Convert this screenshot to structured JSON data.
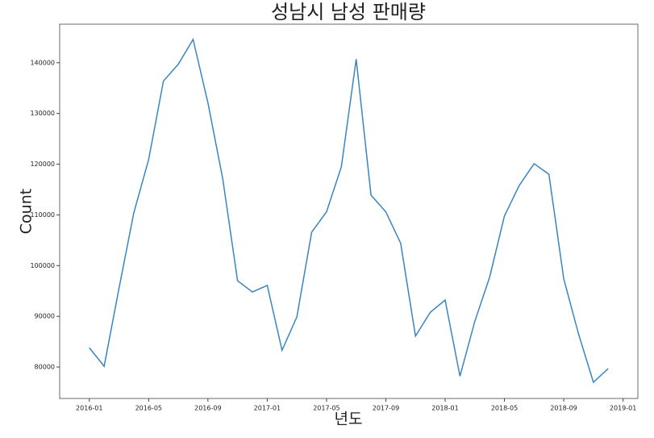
{
  "chart_data": {
    "type": "line",
    "title": "성남시 남성 판매량",
    "x_label": "년도",
    "y_label": "Count",
    "x": [
      "2016-01",
      "2016-02",
      "2016-03",
      "2016-04",
      "2016-05",
      "2016-06",
      "2016-07",
      "2016-08",
      "2016-09",
      "2016-10",
      "2016-11",
      "2016-12",
      "2017-01",
      "2017-02",
      "2017-03",
      "2017-04",
      "2017-05",
      "2017-06",
      "2017-07",
      "2017-08",
      "2017-09",
      "2017-10",
      "2017-11",
      "2017-12",
      "2018-01",
      "2018-02",
      "2018-03",
      "2018-04",
      "2018-05",
      "2018-06",
      "2018-07",
      "2018-08",
      "2018-09",
      "2018-10",
      "2018-11",
      "2018-12"
    ],
    "series": [
      {
        "color": "#3a85c0",
        "values": [
          83800,
          80150,
          95500,
          110400,
          120900,
          136400,
          139700,
          144600,
          132100,
          117100,
          97000,
          94800,
          96100,
          83300,
          89900,
          106600,
          110600,
          119500,
          140700,
          113900,
          110600,
          104400,
          86100,
          90800,
          93200,
          78200,
          89000,
          97700,
          109800,
          115800,
          120100,
          118000,
          97400,
          86500,
          77000,
          79700
        ]
      }
    ],
    "xlim": [
      "2015-11",
      "2019-02"
    ],
    "xticks": [
      "2016-01",
      "2016-05",
      "2016-09",
      "2017-01",
      "2017-05",
      "2017-09",
      "2018-01",
      "2018-05",
      "2018-09",
      "2019-01"
    ],
    "ylim": [
      73800,
      147600
    ],
    "yticks": [
      80000,
      90000,
      100000,
      110000,
      120000,
      130000,
      140000
    ]
  }
}
